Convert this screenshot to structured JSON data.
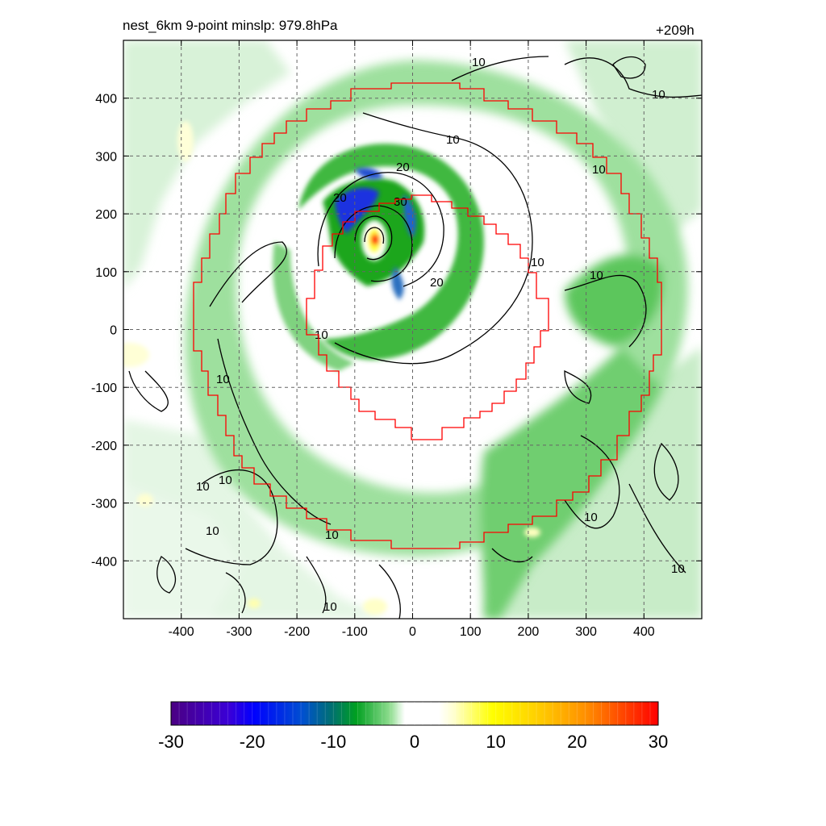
{
  "header": {
    "title": "nest_6km  9-point minslp: 979.8hPa",
    "time": "+209h"
  },
  "chart_data": {
    "type": "heatmap",
    "title": "nest_6km  9-point minslp: 979.8hPa",
    "time_label": "+209h",
    "x_ticks": [
      -400,
      -300,
      -200,
      -100,
      0,
      100,
      200,
      300,
      400
    ],
    "y_ticks": [
      400,
      300,
      200,
      100,
      0,
      -100,
      -200,
      -300,
      -400
    ],
    "xlim": [
      -500,
      500
    ],
    "ylim": [
      -500,
      500
    ],
    "grid": true,
    "colorbar": {
      "ticks": [
        -30,
        -20,
        -10,
        0,
        10,
        20,
        30
      ],
      "range": [
        -30,
        30
      ],
      "orientation": "horizontal"
    },
    "contour_labels": [
      "10",
      "20",
      "30"
    ],
    "vortex_center": [
      -65,
      155
    ],
    "inner_nest_boundary": "red stair-step ring, approx radius 185 centered near (-20, 30)",
    "outer_nest_boundary": "red stair-step ring, approx radius 390 centered near (40, 20)",
    "colors": {
      "negative": [
        "#5a00a0",
        "#0000ff",
        "#0090c0",
        "#00aa30",
        "#c8f0c8"
      ],
      "positive": [
        "#ffffc0",
        "#ffff00",
        "#ffb000",
        "#ff0000"
      ],
      "boundary": "#ff0000",
      "contour": "#000000"
    }
  }
}
